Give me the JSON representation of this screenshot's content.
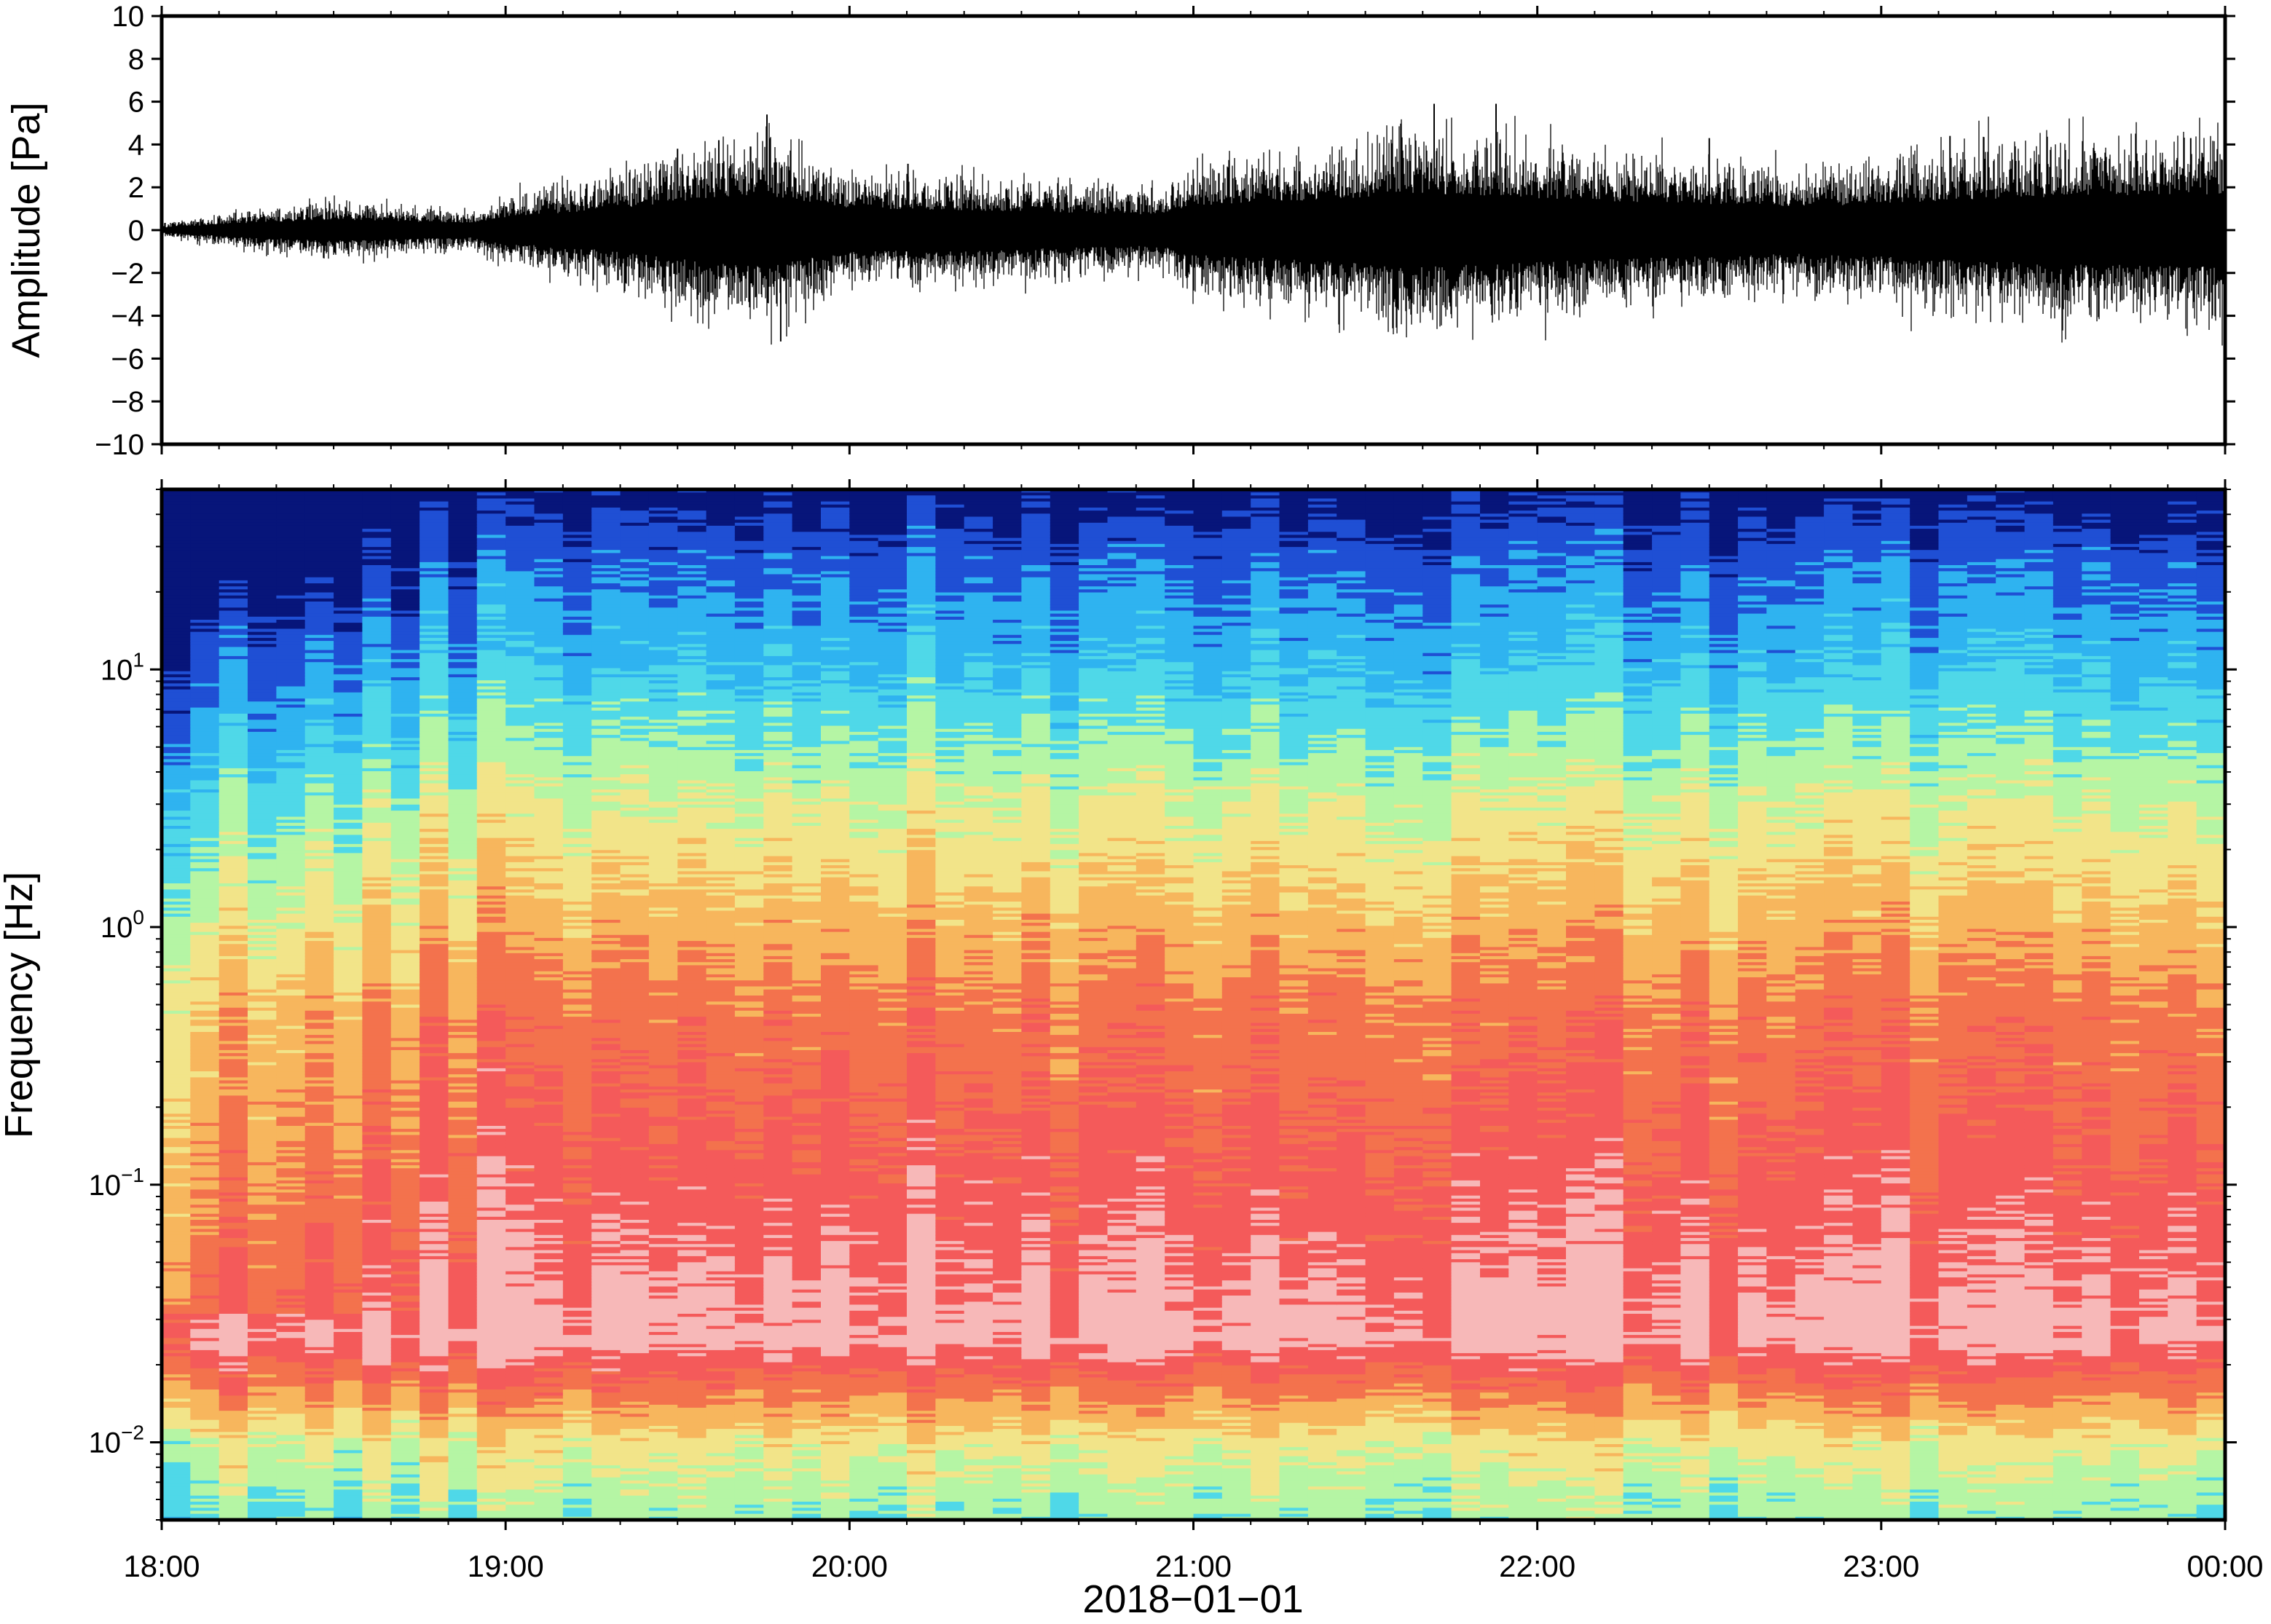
{
  "chart_data": [
    {
      "type": "line",
      "panel": "waveform",
      "ylabel": "Amplitude [Pa]",
      "ylim": [
        -10,
        10
      ],
      "yticks": [
        -10,
        -8,
        -6,
        -4,
        -2,
        0,
        2,
        4,
        6,
        8,
        10
      ],
      "ytick_labels": [
        "−10",
        "−8",
        "−6",
        "−4",
        "−2",
        "0",
        "2",
        "4",
        "6",
        "8",
        "10"
      ],
      "xlim": [
        "18:00",
        "00:00"
      ],
      "series": [
        {
          "color": "#000000",
          "envelope_time_h": [
            18.0,
            18.25,
            18.5,
            18.75,
            18.9,
            19.0,
            19.25,
            19.5,
            19.6,
            19.75,
            19.9,
            20.0,
            20.25,
            20.5,
            20.75,
            20.9,
            21.0,
            21.25,
            21.5,
            21.6,
            21.75,
            22.0,
            22.25,
            22.5,
            22.75,
            23.0,
            23.25,
            23.5,
            23.75,
            24.0
          ],
          "envelope_amplitude_pa": [
            0.2,
            0.6,
            0.9,
            0.7,
            0.6,
            1.1,
            1.6,
            2.4,
            2.8,
            3.0,
            2.2,
            1.8,
            1.7,
            1.6,
            1.4,
            1.3,
            2.1,
            2.4,
            2.8,
            3.2,
            3.0,
            2.7,
            2.4,
            2.2,
            2.0,
            2.2,
            2.6,
            2.8,
            3.0,
            3.0
          ],
          "spike_time_h": [
            19.5,
            19.62,
            19.76,
            19.8,
            20.17,
            21.7,
            21.88,
            22.5,
            23.2,
            23.9
          ],
          "spike_amplitude_pa": [
            3.8,
            4.2,
            5.4,
            -5.2,
            3.1,
            5.9,
            5.9,
            4.3,
            4.4,
            4.3
          ]
        }
      ]
    },
    {
      "type": "heatmap",
      "panel": "spectrogram",
      "ylabel": "Frequency [Hz]",
      "xlabel": "2018−01−01",
      "yscale": "log",
      "ylim": [
        0.005,
        50
      ],
      "yticks": [
        0.01,
        0.1,
        1,
        10
      ],
      "ytick_labels": [
        {
          "base": "10",
          "exp": "−2"
        },
        {
          "base": "10",
          "exp": "−1"
        },
        {
          "base": "10",
          "exp": "0"
        },
        {
          "base": "10",
          "exp": "1"
        }
      ],
      "xticks": [
        "18:00",
        "19:00",
        "20:00",
        "21:00",
        "22:00",
        "23:00",
        "00:00"
      ],
      "colormap": [
        "#07157a",
        "#1f4fd4",
        "#2fb3f0",
        "#4fd8e8",
        "#b5f5a4",
        "#f2e489",
        "#f7b65d",
        "#f3724d",
        "#f45a5a",
        "#f7b8b8"
      ],
      "power_profile_log10f": [
        -2.3,
        -2.0,
        -1.6,
        -1.0,
        -0.3,
        0.5,
        1.0,
        1.4,
        1.7
      ],
      "power_profile_level": [
        0.42,
        0.55,
        0.95,
        0.85,
        0.75,
        0.5,
        0.3,
        0.18,
        0.05
      ]
    }
  ]
}
